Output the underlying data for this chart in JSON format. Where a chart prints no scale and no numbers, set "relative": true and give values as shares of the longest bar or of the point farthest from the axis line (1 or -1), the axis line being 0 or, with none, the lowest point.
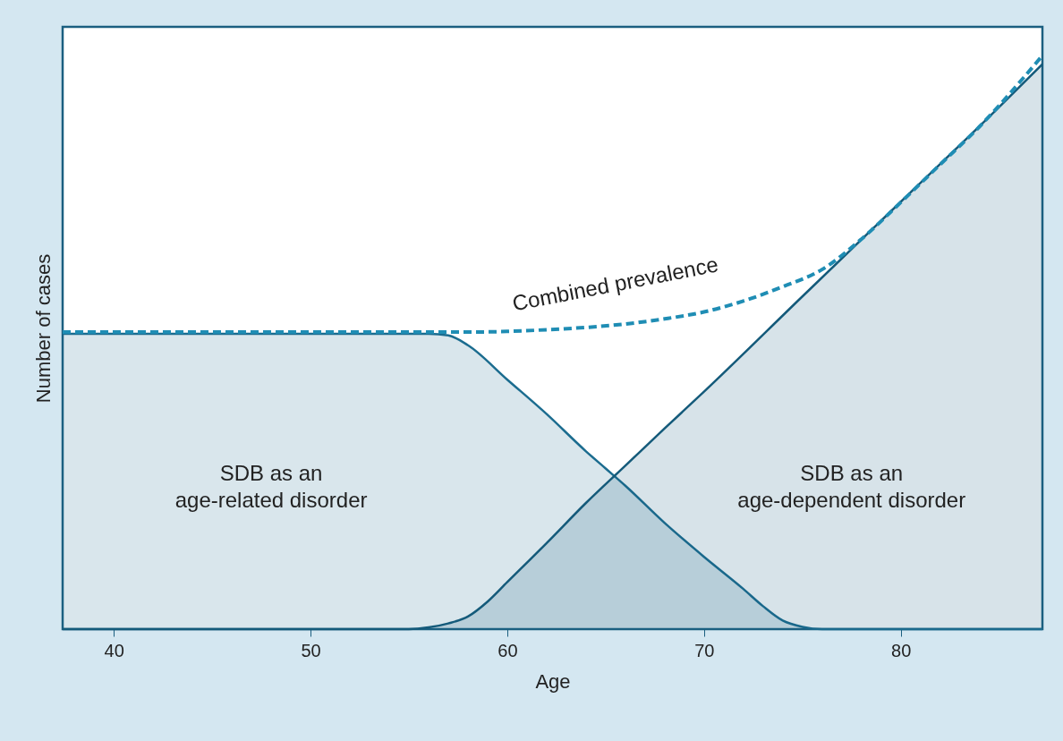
{
  "chart_data": {
    "type": "area",
    "xlabel": "Age",
    "ylabel": "Number of cases",
    "xlim": [
      37.4,
      87.2
    ],
    "xticks": [
      40,
      50,
      60,
      70,
      80
    ],
    "relative": true,
    "tick_labels": "x",
    "grid": false,
    "series": [
      {
        "name": "SDB as an age-related disorder",
        "color": "#1b6c8f",
        "x": [
          37.4,
          56,
          57,
          58,
          60,
          62,
          64,
          65,
          66,
          68,
          70,
          72,
          73,
          74,
          75,
          76,
          87.2
        ],
        "values": [
          0.515,
          0.515,
          0.512,
          0.495,
          0.435,
          0.375,
          0.31,
          0.28,
          0.25,
          0.185,
          0.126,
          0.07,
          0.04,
          0.015,
          0.004,
          0,
          0
        ]
      },
      {
        "name": "SDB as an age-dependent disorder",
        "color": "#145a7a",
        "x": [
          37.4,
          55,
          56,
          57,
          58,
          59,
          60,
          62,
          64,
          66,
          68,
          70,
          75,
          80,
          85,
          87.2
        ],
        "values": [
          0,
          0,
          0.003,
          0.01,
          0.022,
          0.048,
          0.082,
          0.15,
          0.22,
          0.285,
          0.35,
          0.414,
          0.58,
          0.745,
          0.91,
          0.985
        ]
      },
      {
        "name": "Combined prevalence",
        "type": "line",
        "line_style": "dashed",
        "color": "#1f8db4",
        "x": [
          37.4,
          56,
          58,
          60,
          62,
          64,
          66,
          68,
          70,
          72,
          74,
          76,
          78,
          80,
          82,
          84,
          87.2
        ],
        "values": [
          0.518,
          0.518,
          0.518,
          0.519,
          0.522,
          0.526,
          0.532,
          0.541,
          0.553,
          0.572,
          0.597,
          0.627,
          0.68,
          0.744,
          0.81,
          0.876,
          1.0
        ]
      }
    ]
  }
}
